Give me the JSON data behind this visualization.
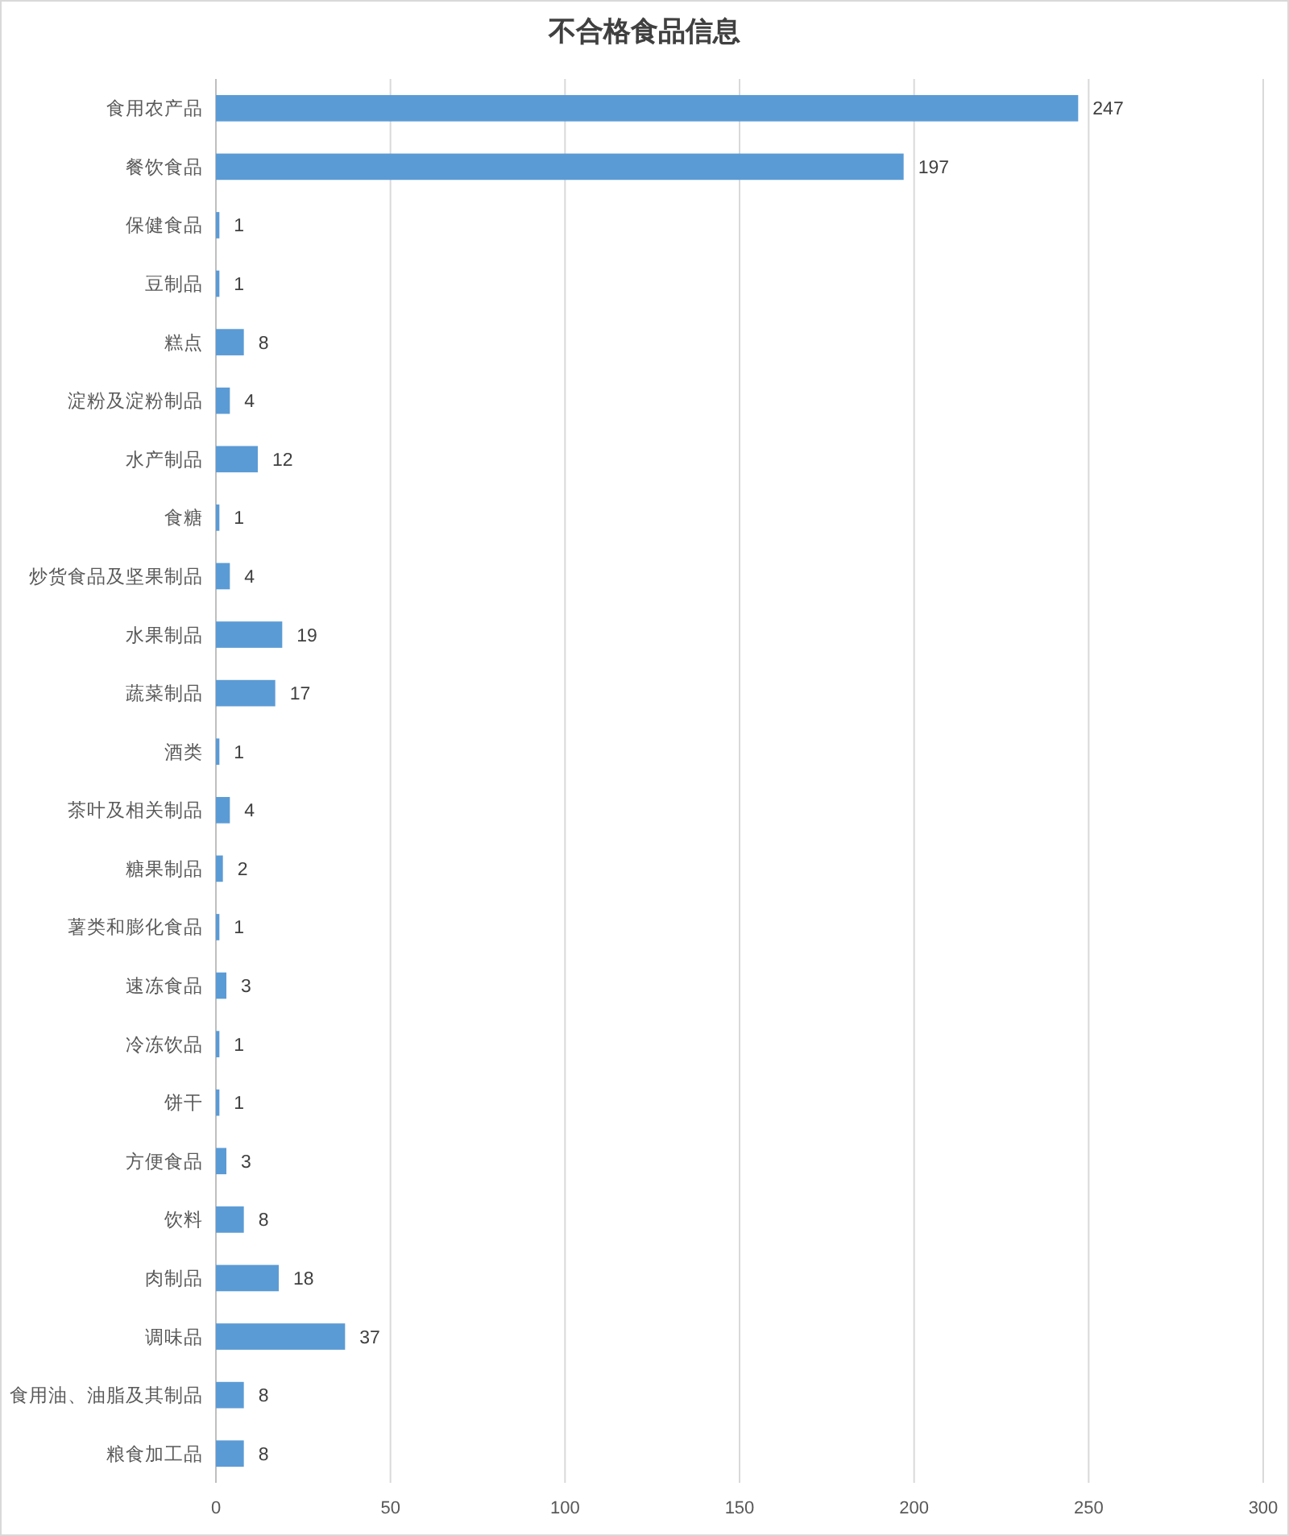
{
  "chart_data": {
    "type": "bar",
    "orientation": "horizontal",
    "title": "不合格食品信息",
    "categories": [
      "食用农产品",
      "餐饮食品",
      "保健食品",
      "豆制品",
      "糕点",
      "淀粉及淀粉制品",
      "水产制品",
      "食糖",
      "炒货食品及坚果制品",
      "水果制品",
      "蔬菜制品",
      "酒类",
      "茶叶及相关制品",
      "糖果制品",
      "薯类和膨化食品",
      "速冻食品",
      "冷冻饮品",
      "饼干",
      "方便食品",
      "饮料",
      "肉制品",
      "调味品",
      "食用油、油脂及其制品",
      "粮食加工品"
    ],
    "values": [
      247,
      197,
      1,
      1,
      8,
      4,
      12,
      1,
      4,
      19,
      17,
      1,
      4,
      2,
      1,
      3,
      1,
      1,
      3,
      8,
      18,
      37,
      8,
      8
    ],
    "color": "#5b9bd5",
    "xlim": [
      0,
      300
    ],
    "xticks": [
      0,
      50,
      100,
      150,
      200,
      250,
      300
    ],
    "grid": "x",
    "data_labels": true
  }
}
